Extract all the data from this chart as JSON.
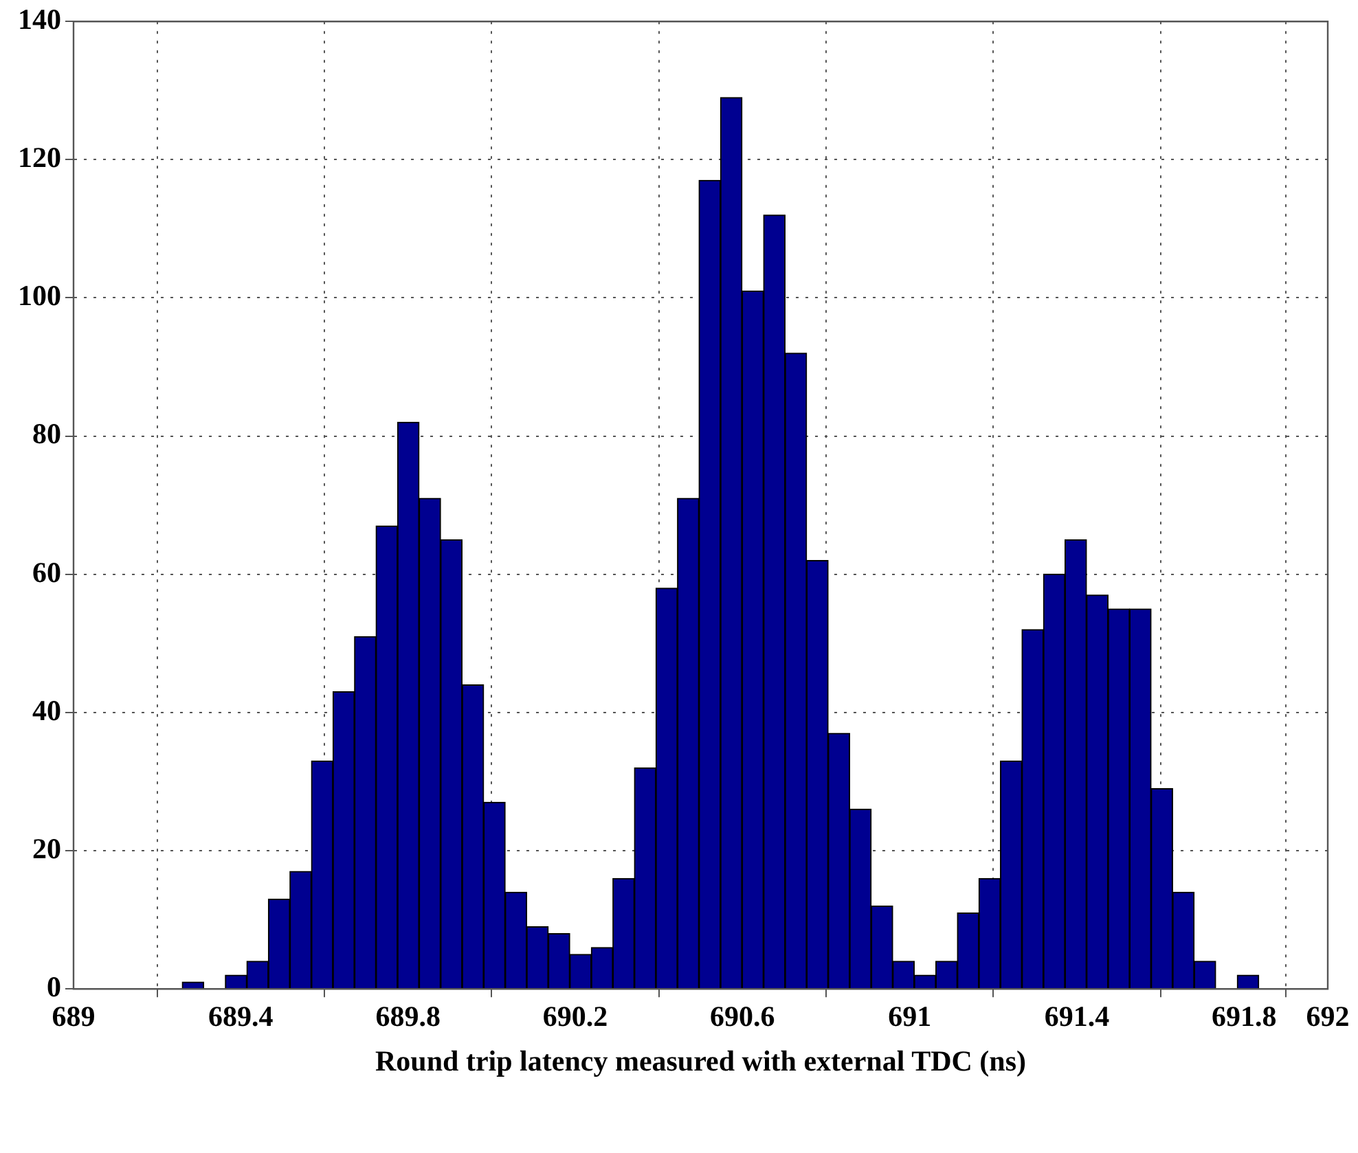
{
  "chart_data": {
    "type": "histogram",
    "xlabel": "Round trip latency measured with external TDC (ns)",
    "bins": [
      689.26,
      689.3115,
      689.363,
      689.4145,
      689.466,
      689.5175,
      689.569,
      689.6205,
      689.672,
      689.7235,
      689.775,
      689.8265,
      689.878,
      689.9295,
      689.981,
      690.0325,
      690.084,
      690.1355,
      690.187,
      690.2385,
      690.29,
      690.3415,
      690.393,
      690.4445,
      690.496,
      690.5475,
      690.599,
      690.6505,
      690.702,
      690.7535,
      690.805,
      690.8565,
      690.908,
      690.9595,
      691.011,
      691.0625,
      691.114,
      691.1655,
      691.217,
      691.2685,
      691.32,
      691.3715,
      691.423,
      691.4745,
      691.526,
      691.5775,
      691.629,
      691.6805,
      691.732,
      691.7835,
      691.835
    ],
    "values": [
      1,
      0,
      2,
      4,
      13,
      17,
      33,
      43,
      51,
      67,
      82,
      71,
      65,
      44,
      27,
      14,
      9,
      8,
      5,
      6,
      16,
      32,
      58,
      71,
      117,
      129,
      101,
      112,
      92,
      62,
      37,
      26,
      12,
      4,
      2,
      4,
      11,
      16,
      33,
      52,
      60,
      65,
      57,
      55,
      55,
      29,
      14,
      4,
      0,
      2
    ],
    "color": "#000090",
    "xlim": [
      689,
      692
    ],
    "xticks": [
      689,
      689.4,
      689.8,
      690.2,
      690.6,
      691,
      691.4,
      691.8,
      692
    ],
    "ylim": [
      0,
      140
    ],
    "yticks": [
      0,
      20,
      40,
      60,
      80,
      100,
      120,
      140
    ],
    "grid": true,
    "legend": false
  }
}
